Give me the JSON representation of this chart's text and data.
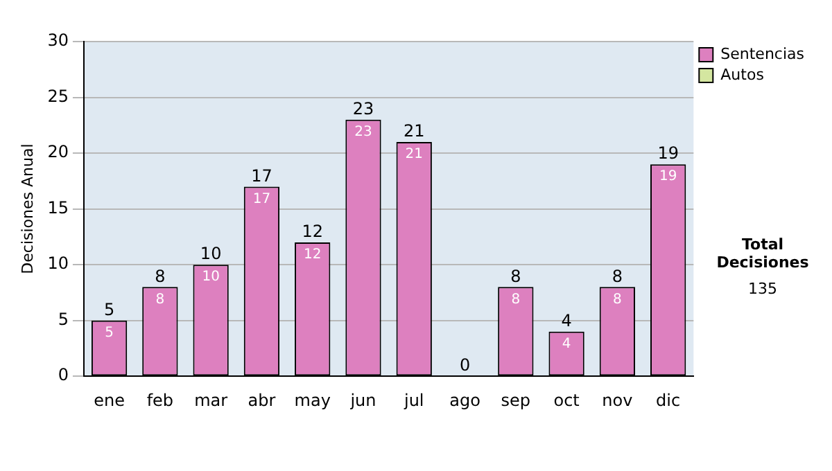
{
  "chart_data": {
    "type": "bar",
    "stacked": true,
    "ylabel": "Decisiones Anual",
    "categories": [
      "ene",
      "feb",
      "mar",
      "abr",
      "may",
      "jun",
      "jul",
      "ago",
      "sep",
      "oct",
      "nov",
      "dic"
    ],
    "series": [
      {
        "name": "Sentencias",
        "color": "#dd80bf",
        "values": [
          5,
          8,
          10,
          17,
          12,
          23,
          21,
          0,
          8,
          4,
          8,
          19
        ],
        "value_labels": [
          "5",
          "8",
          "10",
          "17",
          "12",
          "23",
          "21",
          null,
          "8",
          "4",
          "8",
          "19"
        ]
      },
      {
        "name": "Autos",
        "color": "#d4e6a0",
        "values": [
          0,
          0,
          0,
          0,
          0,
          0,
          0,
          0,
          0,
          0,
          0,
          0
        ]
      }
    ],
    "totals": [
      "5",
      "8",
      "10",
      "17",
      "12",
      "23",
      "21",
      "0",
      "8",
      "4",
      "8",
      "19"
    ],
    "ylim": [
      0,
      30
    ],
    "yticks": [
      0,
      5,
      10,
      15,
      20,
      25,
      30
    ],
    "grid": "y",
    "legend": "right",
    "annotations": [
      "Total Decisiones",
      "135"
    ]
  }
}
